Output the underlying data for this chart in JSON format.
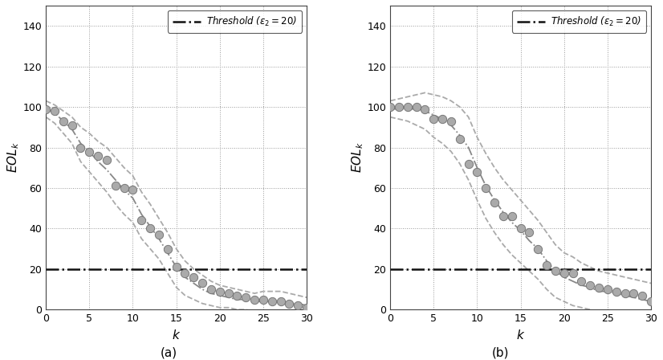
{
  "plot_a": {
    "scatter_x": [
      0,
      1,
      2,
      3,
      4,
      5,
      6,
      7,
      8,
      9,
      10,
      11,
      12,
      13,
      14,
      15,
      16,
      17,
      18,
      19,
      20,
      21,
      22,
      23,
      24,
      25,
      26,
      27,
      28,
      29,
      30
    ],
    "scatter_y": [
      99,
      98,
      93,
      91,
      80,
      78,
      76,
      74,
      61,
      60,
      59,
      44,
      40,
      37,
      30,
      21,
      18,
      16,
      13,
      10,
      9,
      8,
      7,
      6,
      5,
      5,
      4,
      4,
      3,
      2,
      1
    ],
    "upper_band_x": [
      0,
      1,
      2,
      3,
      4,
      5,
      6,
      7,
      8,
      9,
      10,
      11,
      12,
      13,
      14,
      15,
      16,
      17,
      18,
      19,
      20,
      21,
      22,
      23,
      24,
      25,
      26,
      27,
      28,
      29,
      30
    ],
    "upper_band_y": [
      103,
      101,
      98,
      95,
      90,
      87,
      83,
      80,
      75,
      70,
      66,
      58,
      52,
      45,
      38,
      30,
      24,
      20,
      17,
      14,
      12,
      11,
      10,
      9,
      8,
      9,
      9,
      9,
      8,
      7,
      6
    ],
    "lower_band_x": [
      0,
      1,
      2,
      3,
      4,
      5,
      6,
      7,
      8,
      9,
      10,
      11,
      12,
      13,
      14,
      15,
      16,
      17,
      18,
      19,
      20,
      21,
      22,
      23,
      24,
      25,
      26,
      27,
      28,
      29,
      30
    ],
    "lower_band_y": [
      95,
      92,
      87,
      82,
      73,
      68,
      63,
      58,
      52,
      47,
      43,
      35,
      30,
      25,
      18,
      11,
      7,
      5,
      3,
      2,
      1,
      1,
      0,
      0,
      -1,
      -1,
      -1,
      -1,
      -1,
      -2,
      -3
    ],
    "mean_x": [
      0,
      1,
      2,
      3,
      4,
      5,
      6,
      7,
      8,
      9,
      10,
      11,
      12,
      13,
      14,
      15,
      16,
      17,
      18,
      19,
      20,
      21,
      22,
      23,
      24,
      25,
      26,
      27,
      28,
      29,
      30
    ],
    "mean_y": [
      99,
      97,
      93,
      89,
      82,
      78,
      73,
      69,
      64,
      59,
      55,
      47,
      41,
      35,
      28,
      21,
      16,
      13,
      10,
      8,
      7,
      6,
      5,
      5,
      4,
      4,
      4,
      4,
      3,
      3,
      2
    ]
  },
  "plot_b": {
    "scatter_x": [
      0,
      1,
      2,
      3,
      4,
      5,
      6,
      7,
      8,
      9,
      10,
      11,
      12,
      13,
      14,
      15,
      16,
      17,
      18,
      19,
      20,
      21,
      22,
      23,
      24,
      25,
      26,
      27,
      28,
      29,
      30
    ],
    "scatter_y": [
      100,
      100,
      100,
      100,
      99,
      94,
      94,
      93,
      84,
      72,
      68,
      60,
      53,
      46,
      46,
      40,
      38,
      30,
      22,
      19,
      18,
      18,
      14,
      12,
      11,
      10,
      9,
      8,
      8,
      7,
      4
    ],
    "upper_band_x": [
      0,
      1,
      2,
      3,
      4,
      5,
      6,
      7,
      8,
      9,
      10,
      11,
      12,
      13,
      14,
      15,
      16,
      17,
      18,
      19,
      20,
      21,
      22,
      23,
      24,
      25,
      26,
      27,
      28,
      29,
      30
    ],
    "upper_band_y": [
      103,
      104,
      105,
      106,
      107,
      106,
      105,
      103,
      100,
      95,
      85,
      77,
      70,
      64,
      59,
      54,
      49,
      44,
      38,
      32,
      28,
      26,
      23,
      21,
      19,
      18,
      17,
      16,
      15,
      14,
      13
    ],
    "lower_band_x": [
      0,
      1,
      2,
      3,
      4,
      5,
      6,
      7,
      8,
      9,
      10,
      11,
      12,
      13,
      14,
      15,
      16,
      17,
      18,
      19,
      20,
      21,
      22,
      23,
      24,
      25,
      26,
      27,
      28,
      29,
      30
    ],
    "lower_band_y": [
      95,
      94,
      93,
      91,
      89,
      85,
      82,
      78,
      72,
      64,
      54,
      45,
      38,
      32,
      27,
      23,
      19,
      15,
      10,
      6,
      4,
      2,
      1,
      0,
      -1,
      -1,
      -2,
      -3,
      -4,
      -5,
      -6
    ],
    "mean_x": [
      0,
      1,
      2,
      3,
      4,
      5,
      6,
      7,
      8,
      9,
      10,
      11,
      12,
      13,
      14,
      15,
      16,
      17,
      18,
      19,
      20,
      21,
      22,
      23,
      24,
      25,
      26,
      27,
      28,
      29,
      30
    ],
    "mean_y": [
      99,
      99,
      99,
      99,
      98,
      96,
      94,
      91,
      86,
      80,
      70,
      61,
      54,
      48,
      43,
      39,
      34,
      30,
      24,
      19,
      16,
      14,
      12,
      11,
      9,
      9,
      8,
      7,
      6,
      5,
      4
    ]
  },
  "threshold": 20,
  "xlim": [
    0,
    30
  ],
  "ylim": [
    0,
    150
  ],
  "yticks": [
    0,
    20,
    40,
    60,
    80,
    100,
    120,
    140
  ],
  "xticks": [
    0,
    5,
    10,
    15,
    20,
    25,
    30
  ],
  "xlabel": "k",
  "threshold_label": "Threshold ($\\epsilon_2 = 20$)",
  "scatter_color": "#aaaaaa",
  "scatter_edgecolor": "#777777",
  "band_color": "#aaaaaa",
  "mean_color": "#888888",
  "threshold_color": "#111111",
  "label_a": "(a)",
  "label_b": "(b)",
  "background_color": "#ffffff"
}
